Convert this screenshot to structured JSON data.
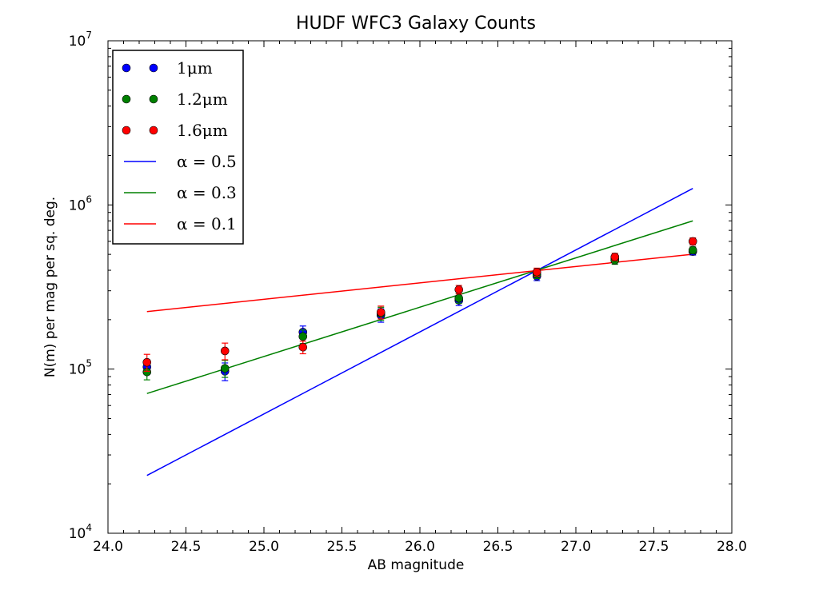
{
  "chart_data": {
    "type": "scatter",
    "title": "HUDF WFC3 Galaxy Counts",
    "xlabel": "AB magnitude",
    "ylabel": "N(m) per mag per sq. deg.",
    "xlim": [
      24.0,
      28.0
    ],
    "ylim": [
      10000,
      10000000
    ],
    "yscale": "log",
    "grid": false,
    "legend_placement": "top-left",
    "x_ticks": [
      "24.0",
      "24.5",
      "25.0",
      "25.5",
      "26.0",
      "26.5",
      "27.0",
      "27.5",
      "28.0"
    ],
    "y_ticks": [
      {
        "value": 10000,
        "base": "10",
        "exp": "4"
      },
      {
        "value": 100000,
        "base": "10",
        "exp": "5"
      },
      {
        "value": 1000000,
        "base": "10",
        "exp": "6"
      },
      {
        "value": 10000000,
        "base": "10",
        "exp": "7"
      }
    ],
    "series": [
      {
        "name": "1μm",
        "kind": "points",
        "color": "#0000ff",
        "x": [
          24.25,
          24.75,
          25.25,
          25.75,
          26.25,
          26.75,
          27.25,
          27.75
        ],
        "y": [
          103000,
          97000,
          168000,
          213000,
          262000,
          368000,
          470000,
          520000
        ],
        "err": [
          10000,
          12000,
          15000,
          20000,
          18000,
          22000,
          25000,
          25000
        ]
      },
      {
        "name": "1.2μm",
        "kind": "points",
        "color": "#008000",
        "x": [
          24.25,
          24.75,
          25.25,
          25.75,
          26.25,
          26.75,
          27.25,
          27.75
        ],
        "y": [
          96000,
          101000,
          158000,
          218000,
          270000,
          378000,
          460000,
          530000
        ],
        "err": [
          10000,
          12000,
          15000,
          20000,
          18000,
          22000,
          25000,
          25000
        ]
      },
      {
        "name": "1.6μm",
        "kind": "points",
        "color": "#ff0000",
        "x": [
          24.25,
          24.75,
          25.25,
          25.75,
          26.25,
          26.75,
          27.25,
          27.75
        ],
        "y": [
          110000,
          129000,
          136000,
          222000,
          305000,
          390000,
          482000,
          600000
        ],
        "err": [
          13000,
          15000,
          12000,
          20000,
          18000,
          22000,
          25000,
          30000
        ]
      },
      {
        "name": "α = 0.5",
        "kind": "line",
        "color": "#0000ff",
        "x": [
          24.25,
          27.75
        ],
        "y": [
          22500,
          1260000
        ]
      },
      {
        "name": "α = 0.3",
        "kind": "line",
        "color": "#008000",
        "x": [
          24.25,
          27.75
        ],
        "y": [
          71000,
          800000
        ]
      },
      {
        "name": "α = 0.1",
        "kind": "line",
        "color": "#ff0000",
        "x": [
          24.25,
          27.75
        ],
        "y": [
          224000,
          501000
        ]
      }
    ],
    "legend": [
      {
        "kind": "points",
        "color": "#0000ff",
        "label": "1μm"
      },
      {
        "kind": "points",
        "color": "#008000",
        "label": "1.2μm"
      },
      {
        "kind": "points",
        "color": "#ff0000",
        "label": "1.6μm"
      },
      {
        "kind": "line",
        "color": "#0000ff",
        "label": "α = 0.5"
      },
      {
        "kind": "line",
        "color": "#008000",
        "label": "α = 0.3"
      },
      {
        "kind": "line",
        "color": "#ff0000",
        "label": "α = 0.1"
      }
    ]
  }
}
